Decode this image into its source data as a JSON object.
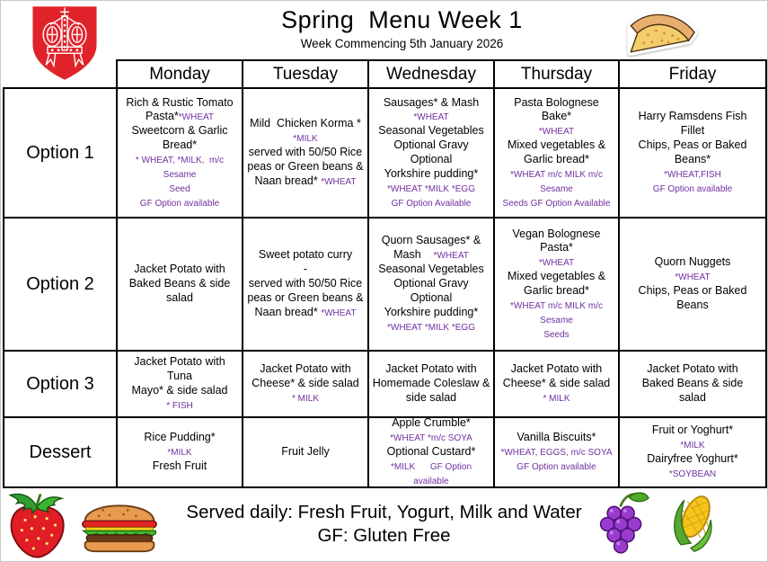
{
  "page": {
    "title": "Spring  Menu Week 1",
    "subtitle": "Week Commencing 5th January 2026"
  },
  "colors": {
    "allergen_purple": "#7030A0",
    "crest_red": "#E0232A",
    "border_black": "#000000"
  },
  "icons": [
    "school-crest-icon",
    "pizza-icon",
    "strawberry-icon",
    "burger-icon",
    "grapes-icon",
    "corn-icon"
  ],
  "table": {
    "day_headers": [
      "Monday",
      "Tuesday",
      "Wednesday",
      "Thursday",
      "Friday"
    ],
    "rows": [
      {
        "label": "Option 1",
        "key": "option-1",
        "cells": [
          {
            "lines": [
              [
                {
                  "t": "Rich & Rustic Tomato",
                  "p": false
                }
              ],
              [
                {
                  "t": "Pasta*",
                  "p": false
                },
                {
                  "t": "*WHEAT",
                  "p": true
                }
              ],
              [
                {
                  "t": "Sweetcorn & Garlic",
                  "p": false
                }
              ],
              [
                {
                  "t": "Bread*",
                  "p": false
                }
              ],
              [
                {
                  "t": "* WHEAT, *MILK,  m/c Sesame",
                  "p": true
                }
              ],
              [
                {
                  "t": "Seed",
                  "p": true
                }
              ],
              [
                {
                  "t": "GF Option available",
                  "p": true
                }
              ]
            ]
          },
          {
            "lines": [
              [
                {
                  "t": "Mild  Chicken Korma *",
                  "p": false
                }
              ],
              [
                {
                  "t": "*MILK",
                  "p": true
                }
              ],
              [
                {
                  "t": "served with 50/50 Rice",
                  "p": false
                }
              ],
              [
                {
                  "t": "peas or Green beans &",
                  "p": false
                }
              ],
              [
                {
                  "t": "Naan bread* ",
                  "p": false
                },
                {
                  "t": "*WHEAT",
                  "p": true
                }
              ]
            ]
          },
          {
            "lines": [
              [
                {
                  "t": "Sausages* & Mash",
                  "p": false
                }
              ],
              [
                {
                  "t": "*WHEAT",
                  "p": true
                }
              ],
              [
                {
                  "t": "Seasonal Vegetables",
                  "p": false
                }
              ],
              [
                {
                  "t": "Optional Gravy Optional",
                  "p": false
                }
              ],
              [
                {
                  "t": "Yorkshire pudding*",
                  "p": false
                }
              ],
              [
                {
                  "t": "*WHEAT *MILK *EGG",
                  "p": true
                }
              ],
              [
                {
                  "t": "GF Option Available",
                  "p": true
                }
              ]
            ]
          },
          {
            "lines": [
              [
                {
                  "t": "Pasta Bolognese Bake*",
                  "p": false
                }
              ],
              [
                {
                  "t": "*WHEAT",
                  "p": true
                }
              ],
              [
                {
                  "t": "Mixed vegetables &",
                  "p": false
                }
              ],
              [
                {
                  "t": "Garlic bread*",
                  "p": false
                }
              ],
              [
                {
                  "t": "*WHEAT m/c MILK m/c Sesame",
                  "p": true
                }
              ],
              [
                {
                  "t": "Seeds GF Option Available",
                  "p": true
                }
              ]
            ]
          },
          {
            "lines": [
              [
                {
                  "t": "Harry Ramsdens Fish",
                  "p": false
                }
              ],
              [
                {
                  "t": "Fillet",
                  "p": false
                }
              ],
              [
                {
                  "t": "Chips, Peas or Baked",
                  "p": false
                }
              ],
              [
                {
                  "t": "Beans*",
                  "p": false
                }
              ],
              [
                {
                  "t": "*WHEAT,FISH",
                  "p": true
                }
              ],
              [
                {
                  "t": "GF Option available",
                  "p": true
                }
              ]
            ]
          }
        ]
      },
      {
        "label": "Option 2",
        "key": "option-2",
        "cells": [
          {
            "lines": [
              [
                {
                  "t": "Jacket Potato with",
                  "p": false
                }
              ],
              [
                {
                  "t": "Baked Beans & side",
                  "p": false
                }
              ],
              [
                {
                  "t": "salad",
                  "p": false
                }
              ]
            ]
          },
          {
            "lines": [
              [
                {
                  "t": "Sweet potato curry",
                  "p": false
                }
              ],
              [
                {
                  "t": "-",
                  "p": false
                }
              ],
              [
                {
                  "t": "served with 50/50 Rice",
                  "p": false
                }
              ],
              [
                {
                  "t": "peas or Green beans &",
                  "p": false
                }
              ],
              [
                {
                  "t": "Naan bread* ",
                  "p": false
                },
                {
                  "t": "*WHEAT",
                  "p": true
                }
              ]
            ]
          },
          {
            "lines": [
              [
                {
                  "t": "Quorn Sausages* &",
                  "p": false
                }
              ],
              [
                {
                  "t": "Mash    ",
                  "p": false
                },
                {
                  "t": "*WHEAT",
                  "p": true
                }
              ],
              [
                {
                  "t": "Seasonal Vegetables",
                  "p": false
                }
              ],
              [
                {
                  "t": "Optional Gravy Optional",
                  "p": false
                }
              ],
              [
                {
                  "t": "Yorkshire pudding*",
                  "p": false
                }
              ],
              [
                {
                  "t": "*WHEAT *MILK *EGG",
                  "p": true
                }
              ]
            ]
          },
          {
            "lines": [
              [
                {
                  "t": "Vegan Bolognese",
                  "p": false
                }
              ],
              [
                {
                  "t": "Pasta*",
                  "p": false
                }
              ],
              [
                {
                  "t": "*WHEAT",
                  "p": true
                }
              ],
              [
                {
                  "t": "Mixed vegetables &",
                  "p": false
                }
              ],
              [
                {
                  "t": "Garlic bread*",
                  "p": false
                }
              ],
              [
                {
                  "t": "*WHEAT m/c MILK m/c Sesame",
                  "p": true
                }
              ],
              [
                {
                  "t": "Seeds",
                  "p": true
                }
              ]
            ]
          },
          {
            "lines": [
              [
                {
                  "t": "Quorn Nuggets",
                  "p": false
                }
              ],
              [
                {
                  "t": "*WHEAT",
                  "p": true
                }
              ],
              [
                {
                  "t": "Chips, Peas or Baked",
                  "p": false
                }
              ],
              [
                {
                  "t": "Beans",
                  "p": false
                }
              ]
            ]
          }
        ]
      },
      {
        "label": "Option 3",
        "key": "option-3",
        "cells": [
          {
            "lines": [
              [
                {
                  "t": "Jacket Potato with Tuna",
                  "p": false
                }
              ],
              [
                {
                  "t": "Mayo* & side salad",
                  "p": false
                }
              ],
              [
                {
                  "t": "* FISH",
                  "p": true
                }
              ]
            ]
          },
          {
            "lines": [
              [
                {
                  "t": "Jacket Potato with",
                  "p": false
                }
              ],
              [
                {
                  "t": "Cheese* & side salad",
                  "p": false
                }
              ],
              [
                {
                  "t": "* MILK",
                  "p": true
                }
              ]
            ]
          },
          {
            "lines": [
              [
                {
                  "t": "Jacket Potato with",
                  "p": false
                }
              ],
              [
                {
                  "t": "Homemade Coleslaw &",
                  "p": false
                }
              ],
              [
                {
                  "t": "side salad",
                  "p": false
                }
              ]
            ]
          },
          {
            "lines": [
              [
                {
                  "t": "Jacket Potato with",
                  "p": false
                }
              ],
              [
                {
                  "t": "Cheese* & side salad",
                  "p": false
                }
              ],
              [
                {
                  "t": "* MILK",
                  "p": true
                }
              ]
            ]
          },
          {
            "lines": [
              [
                {
                  "t": "Jacket Potato with",
                  "p": false
                }
              ],
              [
                {
                  "t": "Baked Beans & side",
                  "p": false
                }
              ],
              [
                {
                  "t": "salad",
                  "p": false
                }
              ]
            ]
          }
        ]
      },
      {
        "label": "Dessert",
        "key": "dessert",
        "cells": [
          {
            "lines": [
              [
                {
                  "t": "Rice Pudding*",
                  "p": false
                }
              ],
              [
                {
                  "t": "*MILK",
                  "p": true
                }
              ],
              [
                {
                  "t": "Fresh Fruit",
                  "p": false
                }
              ]
            ]
          },
          {
            "lines": [
              [
                {
                  "t": "Fruit Jelly",
                  "p": false
                }
              ]
            ]
          },
          {
            "lines": [
              [
                {
                  "t": "Apple Crumble*",
                  "p": false
                }
              ],
              [
                {
                  "t": "*WHEAT *m/c SOYA",
                  "p": true
                }
              ],
              [
                {
                  "t": "Optional Custard*",
                  "p": false
                }
              ],
              [
                {
                  "t": "*MILK      GF Option available",
                  "p": true
                }
              ]
            ]
          },
          {
            "lines": [
              [
                {
                  "t": "Vanilla Biscuits*",
                  "p": false
                }
              ],
              [
                {
                  "t": "*WHEAT, EGGS, m/c SOYA",
                  "p": true
                }
              ],
              [
                {
                  "t": "GF Option available",
                  "p": true
                }
              ]
            ]
          },
          {
            "lines": [
              [
                {
                  "t": "Fruit or Yoghurt*",
                  "p": false
                }
              ],
              [
                {
                  "t": "*MILK",
                  "p": true
                }
              ],
              [
                {
                  "t": "Dairyfree Yoghurt*",
                  "p": false
                }
              ],
              [
                {
                  "t": "*SOYBEAN",
                  "p": true
                }
              ]
            ]
          }
        ]
      }
    ]
  },
  "footer": {
    "line1": "Served daily: Fresh Fruit, Yogurt, Milk and Water",
    "line2": "GF: Gluten Free"
  }
}
